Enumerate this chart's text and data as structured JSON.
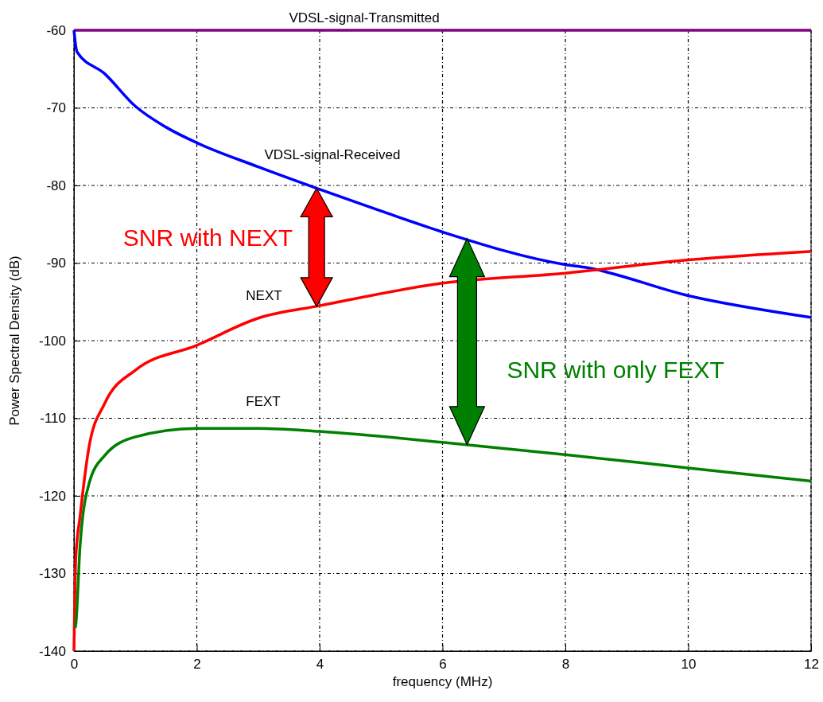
{
  "chart_data": {
    "type": "line",
    "xlabel": "frequency (MHz)",
    "ylabel": "Power Spectral Density (dB)",
    "xlim": [
      0,
      12
    ],
    "ylim": [
      -140,
      -60
    ],
    "xticks": [
      0,
      2,
      4,
      6,
      8,
      10,
      12
    ],
    "yticks": [
      -140,
      -130,
      -120,
      -110,
      -100,
      -90,
      -80,
      -70,
      -60
    ],
    "grid": true,
    "legend": false,
    "line_style": "solid",
    "marker": "none",
    "series": [
      {
        "name": "VDSL-signal-Transmitted",
        "color": "#800080",
        "x": [
          0,
          12
        ],
        "values": [
          -60,
          -60
        ]
      },
      {
        "name": "VDSL-signal-Received",
        "color": "#0000ff",
        "x": [
          0,
          0.05,
          0.5,
          1,
          1.5,
          2,
          3,
          4,
          5,
          6,
          8,
          8.35,
          10,
          12
        ],
        "values": [
          -60,
          -62.8,
          -65.6,
          -69.8,
          -72.5,
          -74.5,
          -77.6,
          -80.5,
          -83.3,
          -86,
          -90.2,
          -90.6,
          -94.2,
          -97
        ]
      },
      {
        "name": "NEXT",
        "color": "#ff0000",
        "x": [
          0,
          0.03,
          0.1,
          0.25,
          0.5,
          1,
          2,
          3,
          4,
          6,
          8,
          10,
          12
        ],
        "values": [
          -140,
          -128,
          -122.6,
          -113.5,
          -108.1,
          -103.8,
          -100.6,
          -97.1,
          -95.5,
          -92.6,
          -91.3,
          -89.6,
          -88.5
        ]
      },
      {
        "name": "FEXT",
        "color": "#008000",
        "x": [
          0.02,
          0.03,
          0.1,
          0.25,
          0.5,
          1,
          2,
          3,
          4,
          6,
          8,
          10,
          12
        ],
        "values": [
          -137,
          -136.6,
          -126.4,
          -118.3,
          -114.8,
          -112.4,
          -111.3,
          -111.3,
          -111.7,
          -113.1,
          -114.7,
          -116.4,
          -118.1
        ]
      }
    ],
    "annotations": [
      "SNR with NEXT",
      "SNR with only FEXT"
    ]
  }
}
